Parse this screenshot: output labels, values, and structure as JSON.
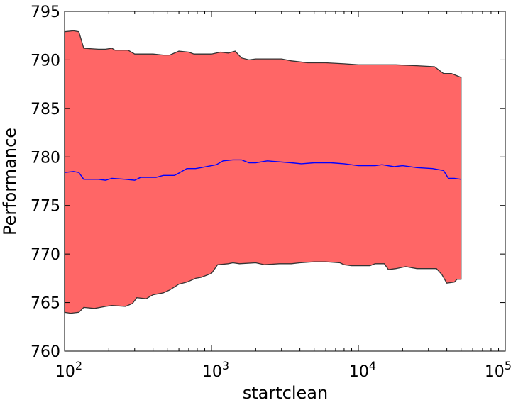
{
  "chart_data": {
    "type": "area",
    "title": "",
    "xlabel": "startclean",
    "ylabel": "Performance",
    "xscale": "log",
    "xlim": [
      100,
      100000
    ],
    "ylim": [
      760,
      795
    ],
    "x_ticks": [
      {
        "value": 100,
        "base": "10",
        "exp": "2"
      },
      {
        "value": 1000,
        "base": "10",
        "exp": "3"
      },
      {
        "value": 10000,
        "base": "10",
        "exp": "4"
      },
      {
        "value": 100000,
        "base": "10",
        "exp": "5"
      }
    ],
    "y_ticks": [
      760,
      765,
      770,
      775,
      780,
      785,
      790,
      795
    ],
    "grid": false,
    "legend": "none",
    "colors": {
      "band_fill": "#ff6666",
      "band_edge": "#333333",
      "mean_line": "#0000ff"
    },
    "series": [
      {
        "role": "mean",
        "points": [
          [
            100,
            778.4
          ],
          [
            115,
            778.5
          ],
          [
            125,
            778.4
          ],
          [
            135,
            777.7
          ],
          [
            170,
            777.7
          ],
          [
            190,
            777.6
          ],
          [
            210,
            777.8
          ],
          [
            260,
            777.7
          ],
          [
            300,
            777.6
          ],
          [
            330,
            777.9
          ],
          [
            420,
            777.9
          ],
          [
            470,
            778.1
          ],
          [
            560,
            778.1
          ],
          [
            610,
            778.4
          ],
          [
            680,
            778.8
          ],
          [
            780,
            778.8
          ],
          [
            850,
            778.9
          ],
          [
            1000,
            779.1
          ],
          [
            1080,
            779.2
          ],
          [
            1200,
            779.6
          ],
          [
            1400,
            779.7
          ],
          [
            1600,
            779.7
          ],
          [
            1800,
            779.4
          ],
          [
            2000,
            779.4
          ],
          [
            2400,
            779.6
          ],
          [
            3500,
            779.4
          ],
          [
            4100,
            779.3
          ],
          [
            5000,
            779.4
          ],
          [
            6500,
            779.4
          ],
          [
            8000,
            779.3
          ],
          [
            10000,
            779.1
          ],
          [
            13000,
            779.1
          ],
          [
            14500,
            779.2
          ],
          [
            17500,
            779.0
          ],
          [
            20000,
            779.1
          ],
          [
            25000,
            778.9
          ],
          [
            32000,
            778.8
          ],
          [
            38000,
            778.6
          ],
          [
            41000,
            777.8
          ],
          [
            45000,
            777.8
          ],
          [
            50000,
            777.7
          ]
        ]
      },
      {
        "role": "upper",
        "points": [
          [
            100,
            792.9
          ],
          [
            115,
            793.0
          ],
          [
            125,
            792.9
          ],
          [
            135,
            791.2
          ],
          [
            170,
            791.1
          ],
          [
            190,
            791.1
          ],
          [
            210,
            791.2
          ],
          [
            220,
            791.0
          ],
          [
            270,
            791.0
          ],
          [
            300,
            790.6
          ],
          [
            400,
            790.6
          ],
          [
            470,
            790.5
          ],
          [
            520,
            790.5
          ],
          [
            600,
            790.9
          ],
          [
            700,
            790.8
          ],
          [
            760,
            790.6
          ],
          [
            900,
            790.6
          ],
          [
            1000,
            790.6
          ],
          [
            1150,
            790.8
          ],
          [
            1300,
            790.7
          ],
          [
            1450,
            790.9
          ],
          [
            1600,
            790.2
          ],
          [
            1800,
            790.0
          ],
          [
            2000,
            790.1
          ],
          [
            2400,
            790.1
          ],
          [
            3000,
            790.1
          ],
          [
            3500,
            789.9
          ],
          [
            4000,
            789.8
          ],
          [
            4500,
            789.7
          ],
          [
            6000,
            789.7
          ],
          [
            8000,
            789.6
          ],
          [
            10000,
            789.5
          ],
          [
            13000,
            789.5
          ],
          [
            18000,
            789.5
          ],
          [
            25000,
            789.4
          ],
          [
            33000,
            789.3
          ],
          [
            38000,
            788.6
          ],
          [
            43000,
            788.6
          ],
          [
            50000,
            788.2
          ]
        ]
      },
      {
        "role": "lower",
        "points": [
          [
            100,
            764.0
          ],
          [
            110,
            763.9
          ],
          [
            125,
            764.0
          ],
          [
            135,
            764.5
          ],
          [
            160,
            764.4
          ],
          [
            190,
            764.6
          ],
          [
            210,
            764.7
          ],
          [
            260,
            764.6
          ],
          [
            290,
            764.9
          ],
          [
            310,
            765.5
          ],
          [
            360,
            765.4
          ],
          [
            400,
            765.8
          ],
          [
            470,
            766.0
          ],
          [
            520,
            766.3
          ],
          [
            600,
            766.9
          ],
          [
            680,
            767.1
          ],
          [
            780,
            767.5
          ],
          [
            850,
            767.6
          ],
          [
            1000,
            768.0
          ],
          [
            1100,
            768.9
          ],
          [
            1300,
            769.0
          ],
          [
            1400,
            769.1
          ],
          [
            1550,
            769.0
          ],
          [
            2000,
            769.1
          ],
          [
            2300,
            768.9
          ],
          [
            2900,
            769.0
          ],
          [
            3500,
            769.0
          ],
          [
            4000,
            769.1
          ],
          [
            5000,
            769.2
          ],
          [
            6000,
            769.2
          ],
          [
            7500,
            769.1
          ],
          [
            8000,
            768.9
          ],
          [
            9000,
            768.8
          ],
          [
            10000,
            768.8
          ],
          [
            12000,
            768.8
          ],
          [
            13000,
            769.0
          ],
          [
            15000,
            769.0
          ],
          [
            16000,
            768.4
          ],
          [
            18000,
            768.5
          ],
          [
            21000,
            768.7
          ],
          [
            25000,
            768.5
          ],
          [
            34000,
            768.5
          ],
          [
            37000,
            767.9
          ],
          [
            40000,
            767.0
          ],
          [
            45000,
            767.1
          ],
          [
            47000,
            767.4
          ],
          [
            50000,
            767.4
          ]
        ]
      }
    ]
  }
}
